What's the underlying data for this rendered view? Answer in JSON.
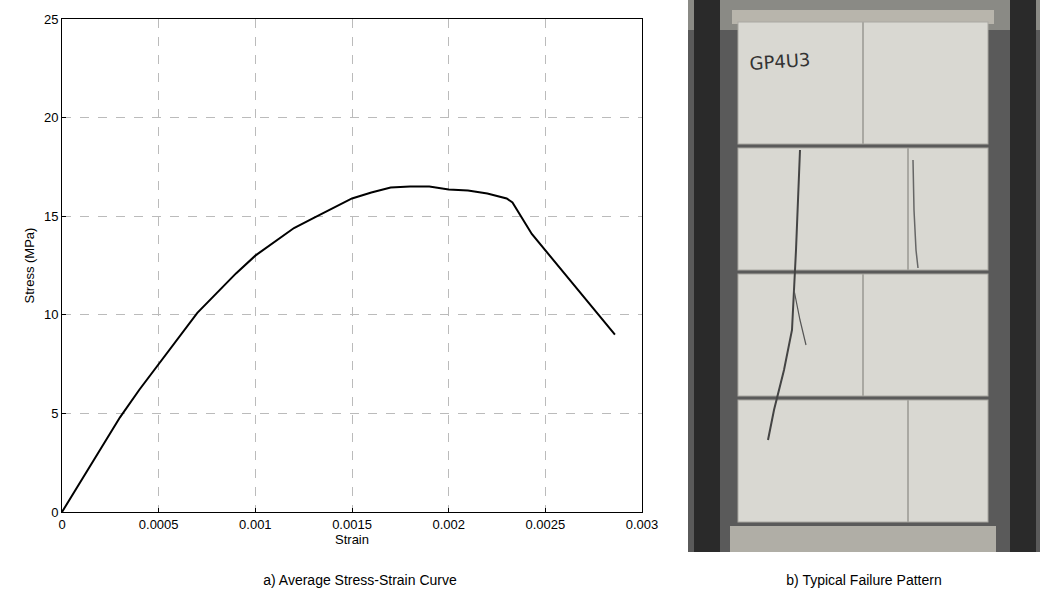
{
  "chart_data": {
    "type": "line",
    "x_label": "Strain",
    "y_label": "Stress (MPa)",
    "x": [
      0,
      0.0001,
      0.0002,
      0.0003,
      0.0004,
      0.0005,
      0.0006,
      0.0007,
      0.0008,
      0.0009,
      0.001,
      0.0011,
      0.0012,
      0.0013,
      0.0014,
      0.0015,
      0.0016,
      0.0017,
      0.0018,
      0.0019,
      0.002,
      0.0021,
      0.0022,
      0.0023,
      0.00233,
      0.00243,
      0.00286
    ],
    "values": [
      0,
      1.6,
      3.2,
      4.8,
      6.2,
      7.5,
      8.8,
      10.1,
      11.1,
      12.1,
      13.0,
      13.7,
      14.4,
      14.9,
      15.4,
      15.9,
      16.2,
      16.45,
      16.5,
      16.5,
      16.35,
      16.3,
      16.15,
      15.9,
      15.7,
      14.1,
      9.0
    ],
    "color": "#000000",
    "xlim": [
      0,
      0.003
    ],
    "xticks": [
      0,
      0.0005,
      0.001,
      0.0015,
      0.002,
      0.0025,
      0.003
    ],
    "ylim": [
      0,
      25
    ],
    "yticks": [
      0,
      5,
      10,
      15,
      20,
      25
    ],
    "grid": true
  },
  "captions": [
    "a) Average Stress-Strain Curve",
    "b) Typical Failure Pattern"
  ],
  "photo": {
    "marking": "GP4U3"
  }
}
